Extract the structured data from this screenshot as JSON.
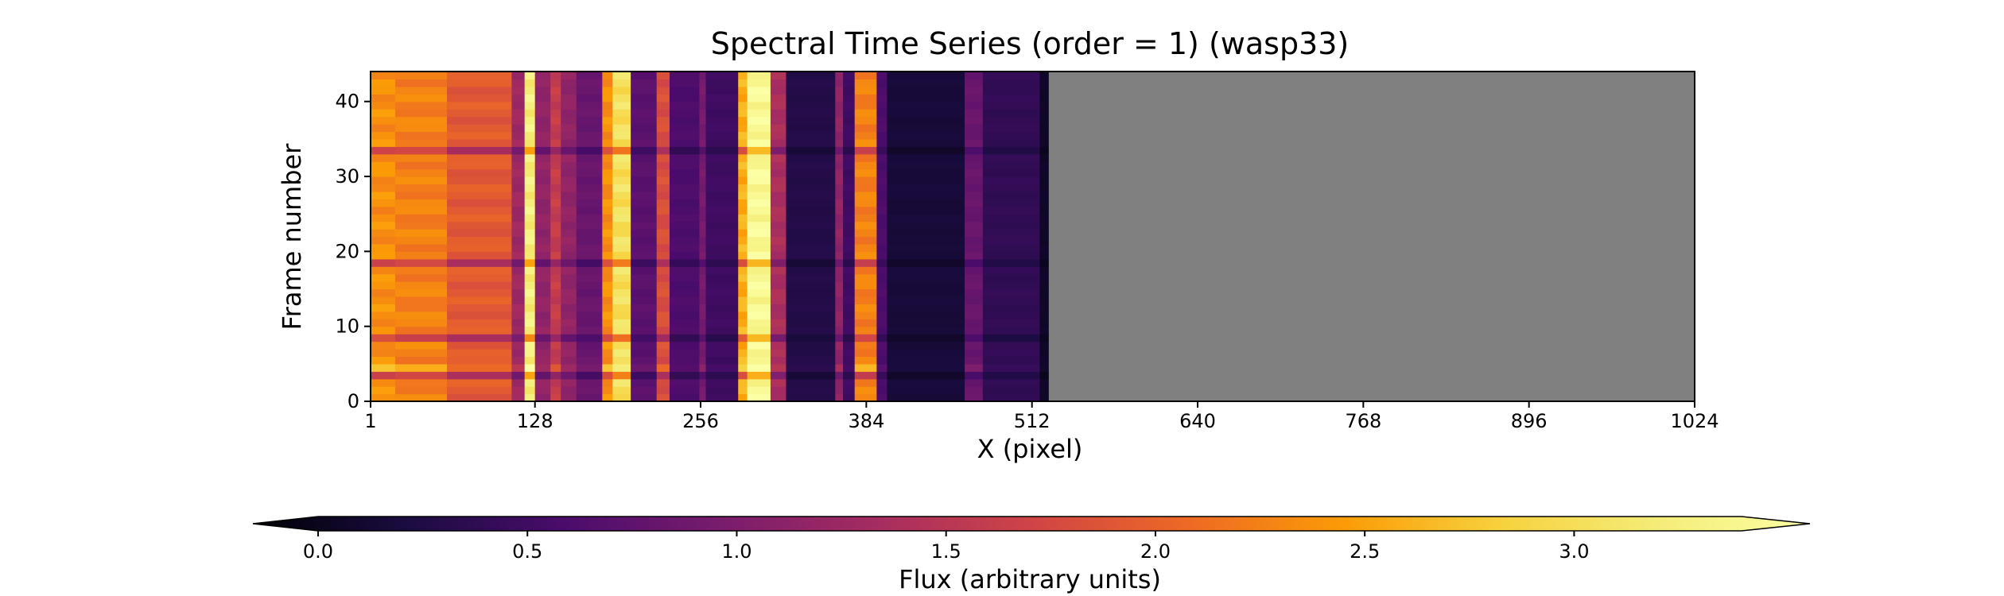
{
  "chart_data": {
    "type": "heatmap",
    "title": "Spectral Time Series (order = 1) (wasp33)",
    "xlabel": "X (pixel)",
    "ylabel": "Frame number",
    "xlim": [
      1,
      1024
    ],
    "ylim": [
      0,
      44
    ],
    "xticks": [
      "1",
      "128",
      "256",
      "384",
      "512",
      "640",
      "768",
      "896",
      "1024"
    ],
    "yticks": [
      "0",
      "10",
      "20",
      "30",
      "40"
    ],
    "data_extent_x": [
      1,
      525
    ],
    "masked_region_x": [
      525,
      1024
    ],
    "masked_color": "#808080",
    "colormap": "inferno",
    "colorbar": {
      "label": "Flux (arbitrary units)",
      "range": [
        0.0,
        3.4
      ],
      "extend": "both",
      "orientation": "horizontal",
      "ticks": [
        "0.0",
        "0.5",
        "1.0",
        "1.5",
        "2.0",
        "2.5",
        "3.0"
      ]
    },
    "column_profile": [
      {
        "x0": 1,
        "x1": 20,
        "flux": 2.3
      },
      {
        "x0": 20,
        "x1": 60,
        "flux": 2.2
      },
      {
        "x0": 60,
        "x1": 110,
        "flux": 1.9
      },
      {
        "x0": 110,
        "x1": 120,
        "flux": 1.3
      },
      {
        "x0": 120,
        "x1": 128,
        "flux": 3.1
      },
      {
        "x0": 128,
        "x1": 140,
        "flux": 1.2
      },
      {
        "x0": 140,
        "x1": 148,
        "flux": 1.6
      },
      {
        "x0": 148,
        "x1": 160,
        "flux": 1.2
      },
      {
        "x0": 160,
        "x1": 180,
        "flux": 0.9
      },
      {
        "x0": 180,
        "x1": 188,
        "flux": 2.3
      },
      {
        "x0": 188,
        "x1": 202,
        "flux": 2.9
      },
      {
        "x0": 202,
        "x1": 222,
        "flux": 0.8
      },
      {
        "x0": 222,
        "x1": 232,
        "flux": 1.8
      },
      {
        "x0": 232,
        "x1": 255,
        "flux": 0.7
      },
      {
        "x0": 255,
        "x1": 260,
        "flux": 1.0
      },
      {
        "x0": 260,
        "x1": 285,
        "flux": 0.6
      },
      {
        "x0": 285,
        "x1": 292,
        "flux": 2.5
      },
      {
        "x0": 292,
        "x1": 310,
        "flux": 3.3
      },
      {
        "x0": 310,
        "x1": 322,
        "flux": 1.4
      },
      {
        "x0": 322,
        "x1": 360,
        "flux": 0.4
      },
      {
        "x0": 360,
        "x1": 366,
        "flux": 1.2
      },
      {
        "x0": 366,
        "x1": 375,
        "flux": 0.6
      },
      {
        "x0": 375,
        "x1": 392,
        "flux": 2.2
      },
      {
        "x0": 392,
        "x1": 400,
        "flux": 0.7
      },
      {
        "x0": 400,
        "x1": 460,
        "flux": 0.3
      },
      {
        "x0": 460,
        "x1": 474,
        "flux": 0.9
      },
      {
        "x0": 474,
        "x1": 518,
        "flux": 0.5
      },
      {
        "x0": 518,
        "x1": 525,
        "flux": 0.2
      }
    ],
    "low_flux_frames": [
      3,
      8,
      18,
      33
    ],
    "high_flux_frame": 4
  }
}
